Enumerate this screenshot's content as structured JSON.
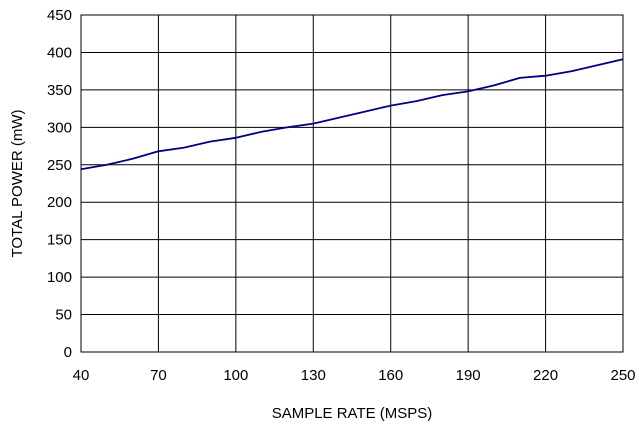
{
  "chart_data": {
    "type": "line",
    "title": "",
    "xlabel": "SAMPLE RATE (MSPS)",
    "ylabel": "TOTAL POWER (mW)",
    "xlim": [
      40,
      250
    ],
    "ylim": [
      0,
      450
    ],
    "xticks": [
      "40",
      "70",
      "100",
      "130",
      "160",
      "190",
      "220",
      "250"
    ],
    "yticks": [
      "0",
      "50",
      "100",
      "150",
      "200",
      "250",
      "300",
      "350",
      "400",
      "450"
    ],
    "grid": true,
    "legend": "none",
    "series": [
      {
        "color": "#000080",
        "x": [
          40,
          50,
          60,
          70,
          80,
          90,
          100,
          110,
          120,
          130,
          140,
          150,
          160,
          170,
          180,
          190,
          200,
          210,
          220,
          230,
          240,
          250
        ],
        "y": [
          244,
          250,
          258,
          268,
          273,
          281,
          286,
          294,
          300,
          305,
          313,
          321,
          329,
          335,
          343,
          348,
          356,
          366,
          369,
          375,
          383,
          391
        ]
      }
    ]
  }
}
